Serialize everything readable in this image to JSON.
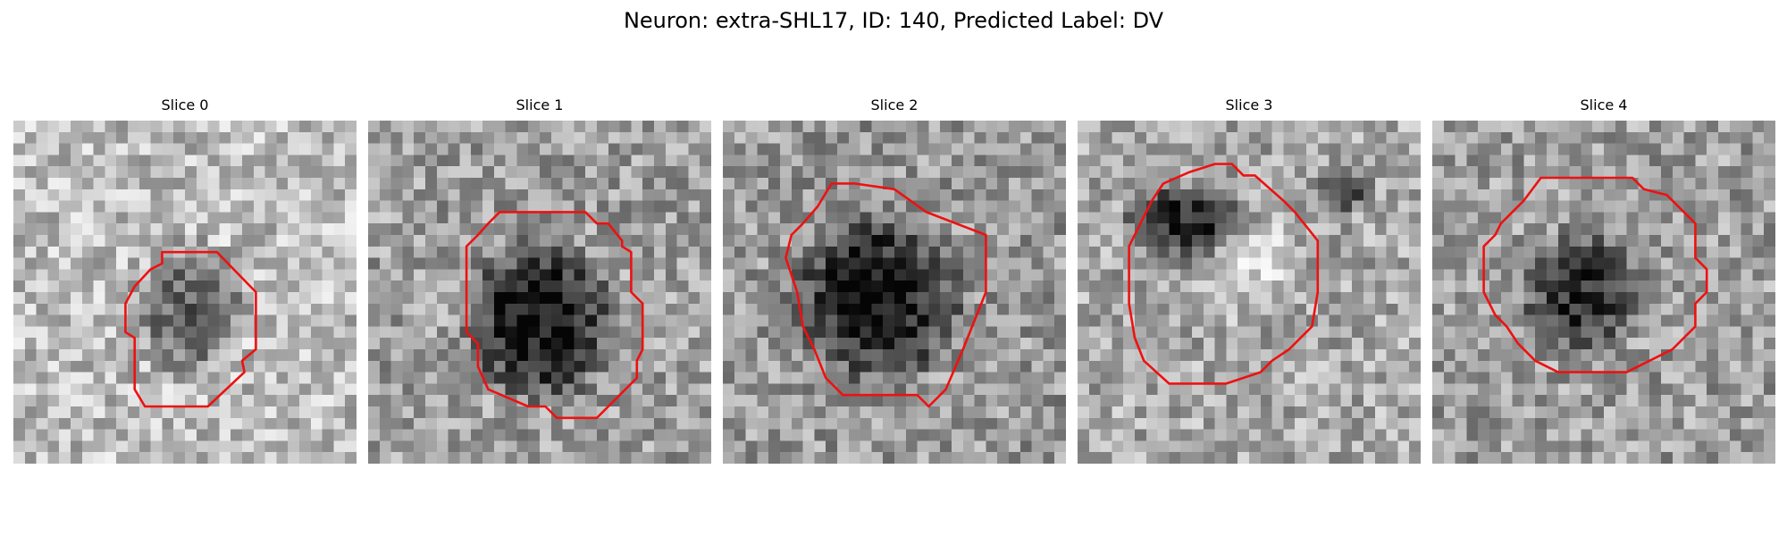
{
  "figure": {
    "title": "Neuron: extra-SHL17, ID: 140, Predicted Label: DV"
  },
  "colors": {
    "contour": "#ee1111",
    "background": "#ffffff"
  },
  "panels": [
    {
      "title": "Slice 0"
    },
    {
      "title": "Slice 1"
    },
    {
      "title": "Slice 2"
    },
    {
      "title": "Slice 3"
    },
    {
      "title": "Slice 4"
    }
  ]
}
